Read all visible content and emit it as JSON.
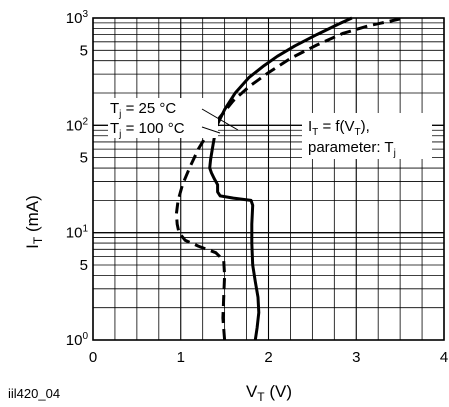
{
  "chart_data": {
    "type": "line",
    "figure_id": "iil420_04",
    "xlabel": {
      "main": "V",
      "sub": "T",
      "unit": " (V)"
    },
    "ylabel": {
      "main": "I",
      "sub": "T",
      "unit": " (mA)"
    },
    "x_scale": "linear",
    "y_scale": "log",
    "xlim": [
      0,
      4
    ],
    "ylim": [
      1,
      1000
    ],
    "x_ticks": [
      "0",
      "1",
      "2",
      "3",
      "4"
    ],
    "y_ticks": [
      {
        "value": 1,
        "base": "10",
        "exp": "0"
      },
      {
        "value": 5,
        "base": "5",
        "exp": ""
      },
      {
        "value": 10,
        "base": "10",
        "exp": "1"
      },
      {
        "value": 50,
        "base": "5",
        "exp": ""
      },
      {
        "value": 100,
        "base": "10",
        "exp": "2"
      },
      {
        "value": 500,
        "base": "5",
        "exp": ""
      },
      {
        "value": 1000,
        "base": "10",
        "exp": "3"
      }
    ],
    "grid": true,
    "series": [
      {
        "name": "Tj = 25 °C",
        "label_parts": {
          "a": "T",
          "sub": "j",
          "b": " = 25 °C"
        },
        "style": "solid",
        "points": [
          [
            1.85,
            1
          ],
          [
            1.87,
            1.3
          ],
          [
            1.89,
            1.8
          ],
          [
            1.88,
            2.5
          ],
          [
            1.85,
            3.5
          ],
          [
            1.82,
            5
          ],
          [
            1.81,
            8
          ],
          [
            1.81,
            12
          ],
          [
            1.82,
            18
          ],
          [
            1.8,
            20
          ],
          [
            1.6,
            21
          ],
          [
            1.45,
            22
          ],
          [
            1.42,
            24
          ],
          [
            1.42,
            28
          ],
          [
            1.38,
            32
          ],
          [
            1.35,
            36
          ],
          [
            1.33,
            40
          ],
          [
            1.34,
            48
          ],
          [
            1.36,
            60
          ],
          [
            1.38,
            75
          ],
          [
            1.4,
            95
          ],
          [
            1.5,
            140
          ],
          [
            1.62,
            200
          ],
          [
            1.78,
            280
          ],
          [
            1.95,
            360
          ],
          [
            2.1,
            440
          ],
          [
            2.3,
            550
          ],
          [
            2.55,
            700
          ],
          [
            2.8,
            880
          ],
          [
            2.95,
            1000
          ]
        ]
      },
      {
        "name": "Tj = 100 °C",
        "label_parts": {
          "a": "T",
          "sub": "j",
          "b": " = 100 °C"
        },
        "style": "dashed",
        "points": [
          [
            1.5,
            1
          ],
          [
            1.48,
            1.6
          ],
          [
            1.49,
            2.5
          ],
          [
            1.5,
            4
          ],
          [
            1.49,
            5.5
          ],
          [
            1.4,
            6.5
          ],
          [
            1.2,
            7.5
          ],
          [
            1.05,
            8.5
          ],
          [
            0.98,
            10
          ],
          [
            0.96,
            12
          ],
          [
            0.95,
            15
          ],
          [
            0.97,
            20
          ],
          [
            1.02,
            28
          ],
          [
            1.1,
            40
          ],
          [
            1.2,
            60
          ],
          [
            1.33,
            90
          ],
          [
            1.45,
            120
          ],
          [
            1.6,
            170
          ],
          [
            1.78,
            230
          ],
          [
            2.0,
            310
          ],
          [
            2.25,
            420
          ],
          [
            2.55,
            560
          ],
          [
            2.85,
            720
          ],
          [
            3.15,
            850
          ],
          [
            3.4,
            940
          ],
          [
            3.5,
            980
          ]
        ]
      }
    ],
    "annotation": {
      "line1": {
        "a": "I",
        "sub1": "T",
        "b": " = f(V",
        "sub2": "T",
        "c": "),"
      },
      "line2": {
        "a": "parameter: T",
        "sub": "j"
      }
    }
  }
}
